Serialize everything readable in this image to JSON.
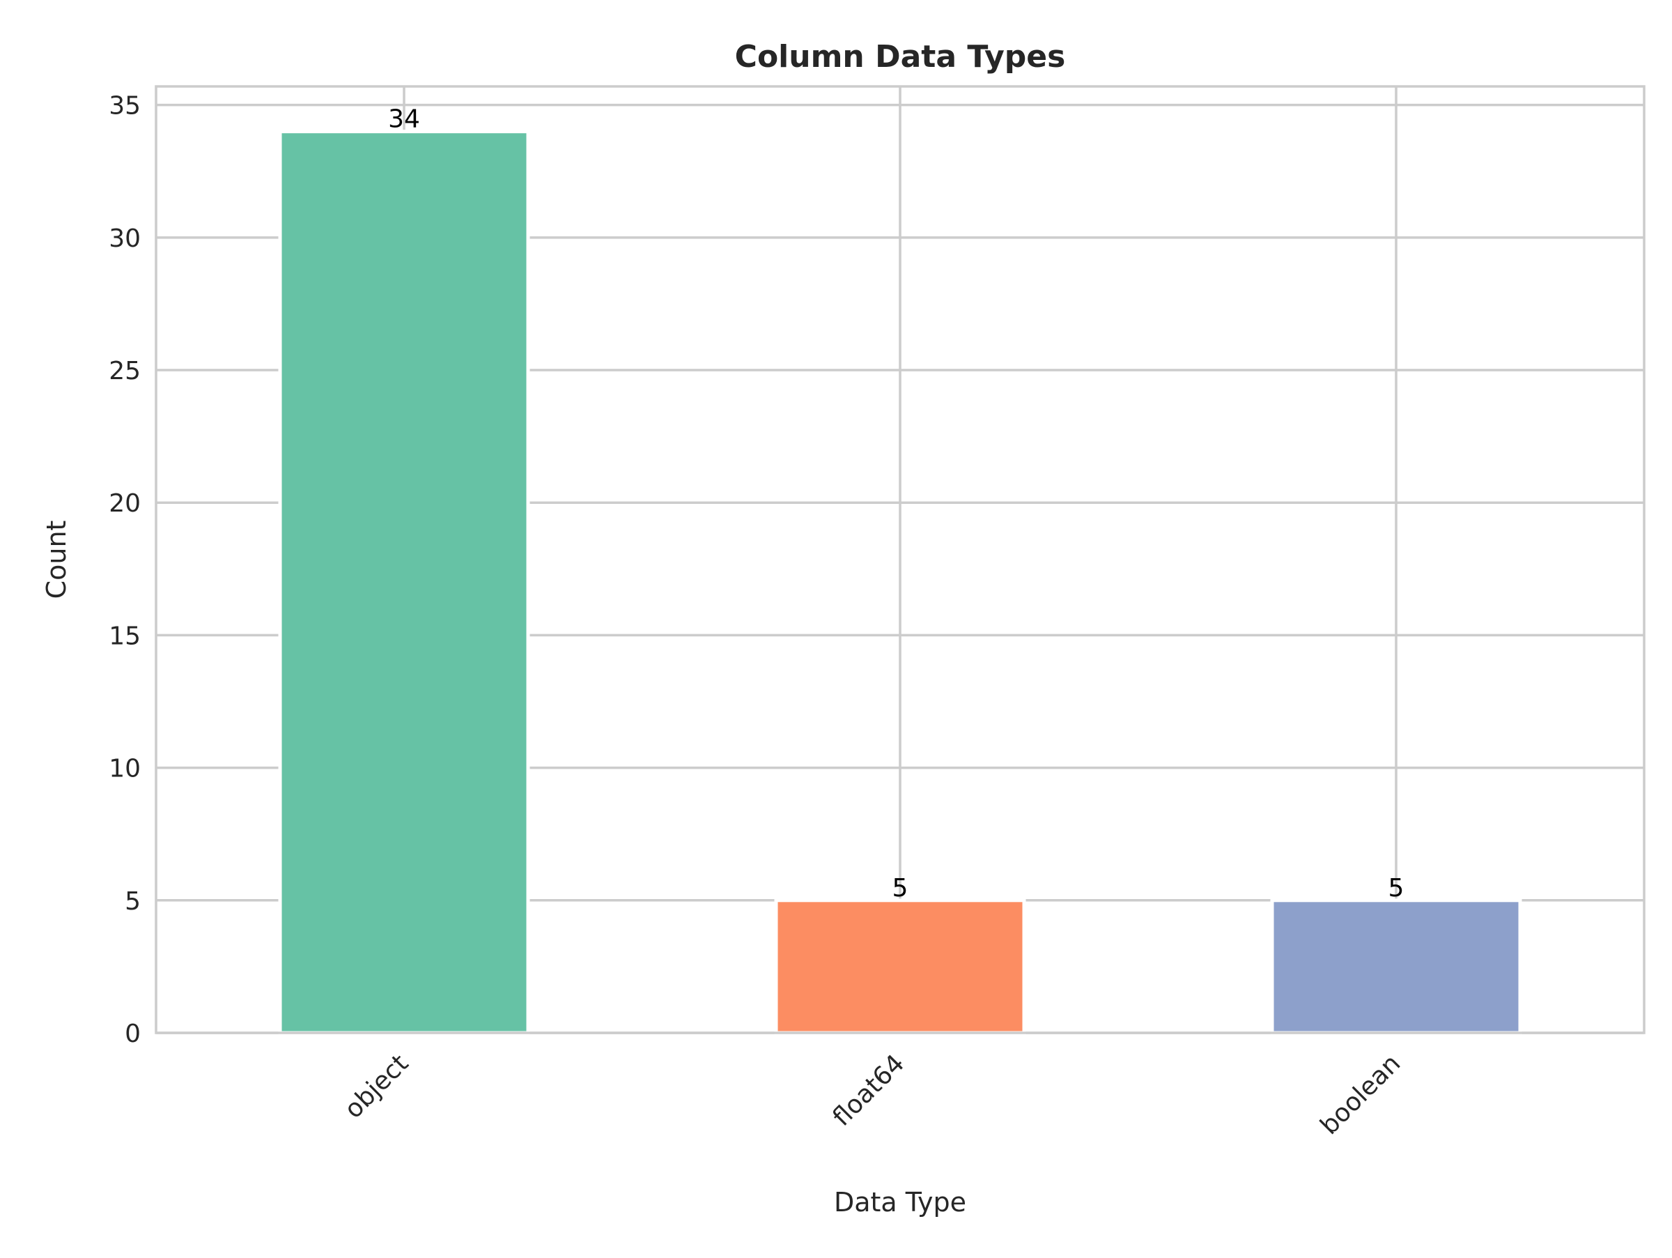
{
  "chart_data": {
    "type": "bar",
    "title": "Column Data Types",
    "xlabel": "Data Type",
    "ylabel": "Count",
    "categories": [
      "object",
      "float64",
      "boolean"
    ],
    "values": [
      34,
      5,
      5
    ],
    "data_labels": [
      "34",
      "5",
      "5"
    ],
    "colors": [
      "#66c2a5",
      "#fc8d62",
      "#8da0cb"
    ],
    "ylim": [
      0,
      35.7
    ],
    "yticks": [
      0,
      5,
      10,
      15,
      20,
      25,
      30,
      35
    ],
    "ytick_labels": [
      "0",
      "5",
      "10",
      "15",
      "20",
      "25",
      "30",
      "35"
    ],
    "grid": true,
    "legend": false
  }
}
